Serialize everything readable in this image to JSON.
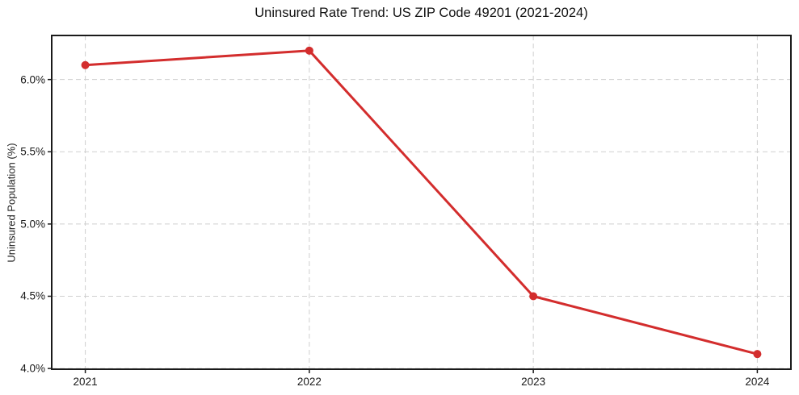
{
  "figure": {
    "background": "#ffffff"
  },
  "chart_data": {
    "type": "line",
    "title": "Uninsured Rate Trend: US ZIP Code 49201 (2021-2024)",
    "xlabel": "",
    "ylabel": "Uninsured Population (%)",
    "x": [
      2021,
      2022,
      2023,
      2024
    ],
    "x_tick_labels": [
      "2021",
      "2022",
      "2023",
      "2024"
    ],
    "series": [
      {
        "name": "Uninsured Rate",
        "values": [
          6.1,
          6.2,
          4.5,
          4.1
        ],
        "color": "#d32d2d",
        "line_width": 3,
        "marker": "circle",
        "marker_radius": 5
      }
    ],
    "y_ticks": [
      4.0,
      4.5,
      5.0,
      5.5,
      6.0
    ],
    "y_tick_labels": [
      "4.0%",
      "4.5%",
      "5.0%",
      "5.5%",
      "6.0%"
    ],
    "xlim": [
      2020.85,
      2024.15
    ],
    "ylim": [
      3.995,
      6.305
    ],
    "grid": true,
    "grid_color": "#cfcfcf",
    "grid_dash": "6 4",
    "axis_color": "#1a1a1a",
    "legend": "none"
  }
}
